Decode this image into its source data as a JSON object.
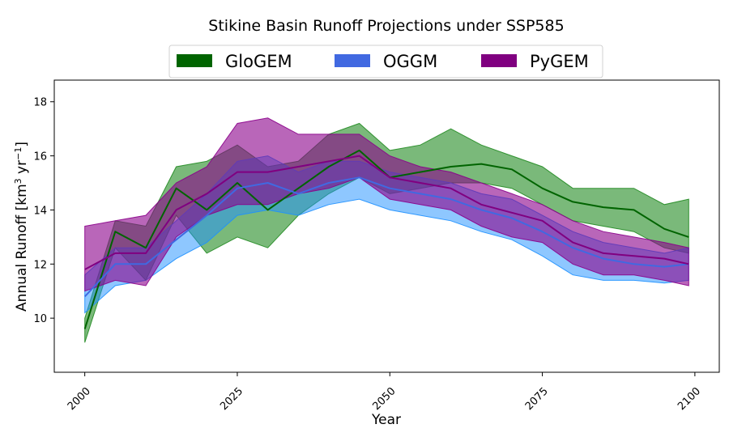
{
  "chart_data": {
    "type": "area",
    "title": "Stikine Basin Runoff Projections under SSP585",
    "xlabel": "Year",
    "ylabel_main": "Annual Runoff [km",
    "ylabel_sup1": "3",
    "ylabel_mid": " yr",
    "ylabel_sup2": "−1",
    "ylabel_end": "]",
    "xlim": [
      1995,
      2104
    ],
    "ylim": [
      8.0,
      18.8
    ],
    "xticks": [
      2000,
      2025,
      2050,
      2075,
      2100
    ],
    "yticks": [
      10,
      12,
      14,
      16,
      18
    ],
    "legend_position": "top-center, above plot",
    "x": [
      2000,
      2005,
      2010,
      2015,
      2020,
      2025,
      2030,
      2035,
      2040,
      2045,
      2050,
      2055,
      2060,
      2065,
      2070,
      2075,
      2080,
      2085,
      2090,
      2095,
      2099
    ],
    "series": [
      {
        "name": "GloGEM",
        "line_color": "#006400",
        "fill_color": "#228B22",
        "fill_opacity": 0.6,
        "mean": [
          9.6,
          13.2,
          12.6,
          14.8,
          14.0,
          15.0,
          14.0,
          14.8,
          15.6,
          16.2,
          15.2,
          15.4,
          15.6,
          15.7,
          15.5,
          14.8,
          14.3,
          14.1,
          14.0,
          13.3,
          13.0
        ],
        "lower": [
          9.1,
          12.6,
          11.4,
          13.8,
          12.4,
          13.0,
          12.6,
          13.8,
          14.6,
          15.2,
          14.6,
          14.8,
          15.0,
          15.0,
          14.8,
          14.2,
          13.6,
          13.4,
          13.2,
          12.6,
          12.4
        ],
        "upper": [
          10.0,
          13.6,
          13.4,
          15.6,
          15.8,
          16.4,
          15.6,
          15.8,
          16.8,
          17.2,
          16.2,
          16.4,
          17.0,
          16.4,
          16.0,
          15.6,
          14.8,
          14.8,
          14.8,
          14.2,
          14.4
        ]
      },
      {
        "name": "OGGM",
        "line_color": "#4169E1",
        "fill_color": "#1E90FF",
        "fill_opacity": 0.5,
        "mean": [
          10.8,
          12.0,
          12.0,
          12.9,
          13.8,
          14.8,
          15.0,
          14.6,
          15.0,
          15.2,
          14.8,
          14.6,
          14.4,
          14.0,
          13.7,
          13.2,
          12.6,
          12.2,
          12.0,
          11.9,
          12.0
        ],
        "lower": [
          10.2,
          11.2,
          11.4,
          12.2,
          12.8,
          13.8,
          14.0,
          13.8,
          14.2,
          14.4,
          14.0,
          13.8,
          13.6,
          13.2,
          12.9,
          12.3,
          11.6,
          11.4,
          11.4,
          11.3,
          11.4
        ],
        "upper": [
          11.6,
          12.6,
          12.6,
          13.6,
          14.6,
          15.8,
          16.0,
          15.4,
          15.8,
          15.8,
          15.4,
          15.2,
          15.0,
          14.6,
          14.4,
          13.8,
          13.2,
          12.8,
          12.6,
          12.4,
          12.6
        ]
      },
      {
        "name": "PyGEM",
        "line_color": "#800080",
        "fill_color": "#8B008B",
        "fill_opacity": 0.6,
        "mean": [
          11.8,
          12.4,
          12.4,
          14.0,
          14.6,
          15.4,
          15.4,
          15.6,
          15.8,
          16.0,
          15.2,
          15.0,
          14.8,
          14.2,
          13.9,
          13.6,
          12.8,
          12.4,
          12.3,
          12.2,
          12.0
        ],
        "lower": [
          11.0,
          11.4,
          11.2,
          13.0,
          13.8,
          14.2,
          14.2,
          14.6,
          14.8,
          15.2,
          14.4,
          14.2,
          14.0,
          13.4,
          13.0,
          12.8,
          12.0,
          11.6,
          11.6,
          11.4,
          11.2
        ],
        "upper": [
          13.4,
          13.6,
          13.8,
          15.0,
          15.6,
          17.2,
          17.4,
          16.8,
          16.8,
          16.8,
          16.0,
          15.6,
          15.4,
          15.0,
          14.6,
          14.2,
          13.6,
          13.2,
          13.0,
          12.8,
          12.6
        ]
      }
    ]
  }
}
